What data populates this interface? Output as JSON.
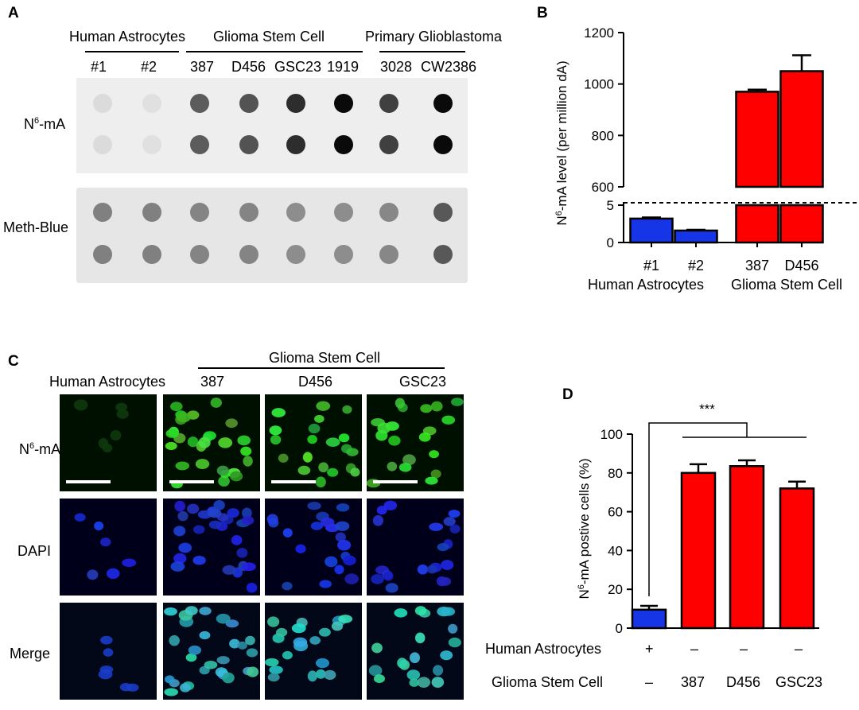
{
  "panelA": {
    "label": "A",
    "groups": [
      "Human Astrocytes",
      "Glioma Stem Cell",
      "Primary Glioblastoma"
    ],
    "samples": [
      "#1",
      "#2",
      "387",
      "D456",
      "GSC23",
      "1919",
      "3028",
      "CW2386"
    ],
    "row_labels": {
      "n6_base": "N",
      "n6_sup": "6",
      "n6_rest": "-mA",
      "methblue": "Meth-Blue"
    },
    "n6ma_dot_intensity": [
      0.08,
      0.06,
      0.62,
      0.66,
      0.82,
      0.97,
      0.74,
      0.97
    ],
    "methblue_dot_intensity": [
      0.4,
      0.4,
      0.38,
      0.38,
      0.33,
      0.33,
      0.36,
      0.62
    ]
  },
  "panelB": {
    "label": "B",
    "ylabel_base": "N",
    "ylabel_sup": "6",
    "ylabel_rest": "-mA level (per million dA)",
    "group_labels": [
      "Human Astrocytes",
      "Glioma Stem Cell"
    ]
  },
  "panelC": {
    "label": "C",
    "group_label": "Glioma Stem Cell",
    "columns": [
      "Human Astrocytes",
      "387",
      "D456",
      "GSC23"
    ],
    "rows": [
      {
        "base": "N",
        "sup": "6",
        "rest": "-mA"
      },
      {
        "base": "DAPI",
        "sup": "",
        "rest": ""
      },
      {
        "base": "Merge",
        "sup": "",
        "rest": ""
      }
    ]
  },
  "panelD": {
    "label": "D",
    "significance": "***",
    "ylabel_base": "N",
    "ylabel_sup": "6",
    "ylabel_rest": "-mA postive cells (%)",
    "row_labels": [
      "Human Astrocytes",
      "Glioma Stem Cell"
    ],
    "astro_marks": [
      "+",
      "–",
      "–",
      "–"
    ],
    "gsc_marks": [
      "–",
      "387",
      "D456",
      "GSC23"
    ]
  },
  "chart_data": [
    {
      "type": "bar",
      "panel": "B",
      "categories": [
        "#1",
        "#2",
        "387",
        "D456"
      ],
      "series": [
        {
          "values": [
            3.2,
            1.6,
            970,
            1050
          ],
          "errors": [
            0.15,
            0.1,
            8,
            62
          ]
        }
      ],
      "colors": [
        "#1535e6",
        "#1535e6",
        "#ff0000",
        "#ff0000"
      ],
      "ylabel": "N6-mA level (per million dA)",
      "broken_axis": true,
      "ylim_lower": [
        0,
        5
      ],
      "ylim_upper": [
        600,
        1200
      ],
      "yticks_lower": [
        0,
        5
      ],
      "yticks_upper": [
        600,
        800,
        1000,
        1200
      ]
    },
    {
      "type": "bar",
      "panel": "D",
      "categories": [
        "Human Astrocytes",
        "387",
        "D456",
        "GSC23"
      ],
      "series": [
        {
          "values": [
            9.5,
            80,
            83.5,
            72
          ],
          "errors": [
            2,
            4.5,
            3,
            3.5
          ]
        }
      ],
      "colors": [
        "#1535e6",
        "#ff0000",
        "#ff0000",
        "#ff0000"
      ],
      "ylabel": "N6-mA postive cells (%)",
      "ylim": [
        0,
        100
      ],
      "yticks": [
        0,
        20,
        40,
        60,
        80,
        100
      ]
    }
  ]
}
